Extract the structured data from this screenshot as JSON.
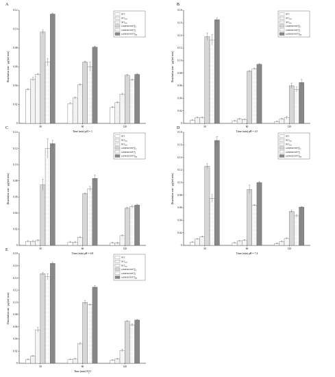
{
  "colors": {
    "axis": "#000000",
    "bar_stroke": "#555555",
    "error": "#555555",
    "solid": "#888888"
  },
  "legend_entries": [
    {
      "main": "NIT",
      "sub": "",
      "sup": ""
    },
    {
      "main": "NIT",
      "sub": "PM",
      "sup": ""
    },
    {
      "main": "NIT",
      "sub": "PM",
      "sup": ""
    },
    {
      "main": "saSMSD/NIT",
      "sub": "TGC",
      "sup": "SD"
    },
    {
      "main": "saSMSD/NIT",
      "sub": "CP",
      "sup": "SD"
    },
    {
      "main": "saSMSD/NIT",
      "sub": "VMR",
      "sup": "SD"
    }
  ],
  "fills": [
    "white",
    "lines-a",
    "lines-b",
    "cross",
    "dots",
    "solid"
  ],
  "chart_data": [
    {
      "type": "bar",
      "panel": "A",
      "xlabel": "Time (min) pH = 1",
      "ylabel": "Dissolution rate / μg/(ml·min)",
      "categories": [
        "30",
        "60",
        "120"
      ],
      "ylim": [
        0,
        0.12
      ],
      "yticks": [
        "0",
        "0.02",
        "0.04",
        "0.06",
        "0.08",
        "0.10",
        "0.12"
      ],
      "yvals": [
        0,
        0.02,
        0.04,
        0.06,
        0.08,
        0.1,
        0.12
      ],
      "values": [
        [
          0.036,
          0.047,
          0.052,
          0.097,
          0.065,
          0.116
        ],
        [
          0.021,
          0.027,
          0.041,
          0.065,
          0.06,
          0.081
        ],
        [
          0.017,
          0.022,
          0.031,
          0.051,
          0.046,
          0.052
        ]
      ],
      "errors": [
        [
          0.001,
          0.002,
          0.001,
          0.002,
          0.004,
          0.001
        ],
        [
          0.001,
          0.001,
          0.001,
          0.001,
          0.005,
          0.001
        ],
        [
          0.001,
          0.001,
          0.001,
          0.001,
          0.001,
          0.001
        ]
      ]
    },
    {
      "type": "bar",
      "panel": "B",
      "xlabel": "Time (min) pH = 4.5",
      "ylabel": "Dissolution rate / μg/(ml·min)",
      "categories": [
        "30",
        "60",
        "120"
      ],
      "ylim": [
        0,
        0.18
      ],
      "yticks": [
        "0",
        "0.02",
        "0.04",
        "0.06",
        "0.08",
        "0.10",
        "0.12",
        "0.14",
        "0.16",
        "0.18"
      ],
      "yvals": [
        0,
        0.02,
        0.04,
        0.06,
        0.08,
        0.1,
        0.12,
        0.14,
        0.16,
        0.18
      ],
      "values": [
        [
          0.005,
          0.009,
          0.009,
          0.138,
          0.133,
          0.165
        ],
        [
          0.004,
          0.007,
          0.006,
          0.083,
          0.087,
          0.094
        ],
        [
          0.003,
          0.007,
          0.009,
          0.06,
          0.054,
          0.065
        ]
      ],
      "errors": [
        [
          0.001,
          0.001,
          0.001,
          0.006,
          0.008,
          0.003
        ],
        [
          0.001,
          0.001,
          0.001,
          0.001,
          0.001,
          0.001
        ],
        [
          0.001,
          0.001,
          0.002,
          0.004,
          0.004,
          0.005
        ]
      ]
    },
    {
      "type": "bar",
      "panel": "C",
      "xlabel": "Time (min) pH = 6.8",
      "ylabel": "Dissolution rate / μg/(ml·min)",
      "categories": [
        "30",
        "60",
        "120"
      ],
      "ylim": [
        0,
        0.14
      ],
      "yticks": [
        "0",
        "0.02",
        "0.04",
        "0.06",
        "0.08",
        "0.10",
        "0.12",
        "0.14"
      ],
      "yvals": [
        0,
        0.02,
        0.04,
        0.06,
        0.08,
        0.1,
        0.12,
        0.14
      ],
      "values": [
        [
          0.005,
          0.005,
          0.006,
          0.075,
          0.12,
          0.126
        ],
        [
          0.004,
          0.004,
          0.01,
          0.064,
          0.07,
          0.083
        ],
        [
          0.003,
          0.003,
          0.012,
          0.046,
          0.048,
          0.05
        ]
      ],
      "errors": [
        [
          0.001,
          0.001,
          0.001,
          0.007,
          0.012,
          0.004
        ],
        [
          0.001,
          0.001,
          0.001,
          0.001,
          0.003,
          0.004
        ],
        [
          0.001,
          0.001,
          0.001,
          0.001,
          0.002,
          0.001
        ]
      ]
    },
    {
      "type": "bar",
      "panel": "D",
      "xlabel": "Time (min) pH = 7.4",
      "ylabel": "Dissolution rate / μg/(ml·min)",
      "categories": [
        "30",
        "60",
        "120"
      ],
      "ylim": [
        0,
        0.18
      ],
      "yticks": [
        "0",
        "0.02",
        "0.04",
        "0.06",
        "0.08",
        "0.10",
        "0.12",
        "0.14",
        "0.16",
        "0.18"
      ],
      "yvals": [
        0,
        0.02,
        0.04,
        0.06,
        0.08,
        0.1,
        0.12,
        0.14,
        0.16,
        0.18
      ],
      "values": [
        [
          0.005,
          0.01,
          0.014,
          0.126,
          0.075,
          0.167
        ],
        [
          0.004,
          0.007,
          0.008,
          0.089,
          0.064,
          0.1
        ],
        [
          0.003,
          0.006,
          0.011,
          0.054,
          0.047,
          0.061
        ]
      ],
      "errors": [
        [
          0.001,
          0.001,
          0.001,
          0.004,
          0.006,
          0.006
        ],
        [
          0.001,
          0.001,
          0.001,
          0.007,
          0.001,
          0.002
        ],
        [
          0.001,
          0.001,
          0.001,
          0.002,
          0.002,
          0.001
        ]
      ]
    },
    {
      "type": "bar",
      "panel": "E",
      "xlabel": "Time (min) H2O",
      "ylabel": "Dissolution rate / μg/(ml·min)",
      "categories": [
        "30",
        "60",
        "120"
      ],
      "ylim": [
        0,
        0.18
      ],
      "yticks": [
        "0",
        "0.02",
        "0.04",
        "0.06",
        "0.08",
        "0.10",
        "0.12",
        "0.14",
        "0.16",
        "0.18"
      ],
      "yvals": [
        0,
        0.02,
        0.04,
        0.06,
        0.08,
        0.1,
        0.12,
        0.14,
        0.16,
        0.18
      ],
      "values": [
        [
          0.006,
          0.012,
          0.055,
          0.147,
          0.142,
          0.164
        ],
        [
          0.006,
          0.007,
          0.032,
          0.1,
          0.096,
          0.125
        ],
        [
          0.005,
          0.007,
          0.021,
          0.069,
          0.063,
          0.071
        ]
      ],
      "errors": [
        [
          0.001,
          0.001,
          0.004,
          0.002,
          0.005,
          0.002
        ],
        [
          0.001,
          0.001,
          0.002,
          0.003,
          0.001,
          0.003
        ],
        [
          0.001,
          0.001,
          0.002,
          0.001,
          0.002,
          0.001
        ]
      ]
    }
  ]
}
